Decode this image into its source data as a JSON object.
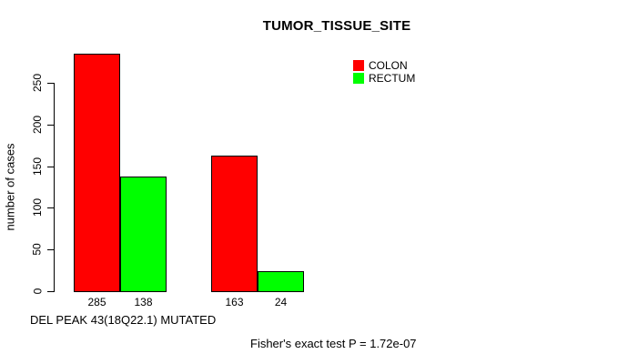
{
  "chart_data": {
    "type": "bar",
    "grouped": true,
    "title": "TUMOR_TISSUE_SITE",
    "ylabel": "number of cases",
    "xlabel": "DEL PEAK 43(18Q22.1) MUTATED",
    "annotation": "Fisher's exact test P = 1.72e-07",
    "categories": [
      "",
      ""
    ],
    "series": [
      {
        "name": "COLON",
        "color": "#ff0000",
        "values": [
          285,
          163
        ]
      },
      {
        "name": "RECTUM",
        "color": "#00ff00",
        "values": [
          138,
          24
        ]
      }
    ],
    "show_value_labels": true,
    "value_labels": [
      "285",
      "138",
      "163",
      "24"
    ],
    "y_ticks": [
      0,
      50,
      100,
      150,
      200,
      250
    ],
    "ylim": [
      0,
      285
    ],
    "grid": false,
    "legend": {
      "position": "top-right",
      "entries": [
        {
          "label": "COLON",
          "color": "#ff0000"
        },
        {
          "label": "RECTUM",
          "color": "#00ff00"
        }
      ]
    },
    "colors": {
      "axis": "#000000",
      "background": "#ffffff",
      "bar_border": "#000000"
    }
  }
}
